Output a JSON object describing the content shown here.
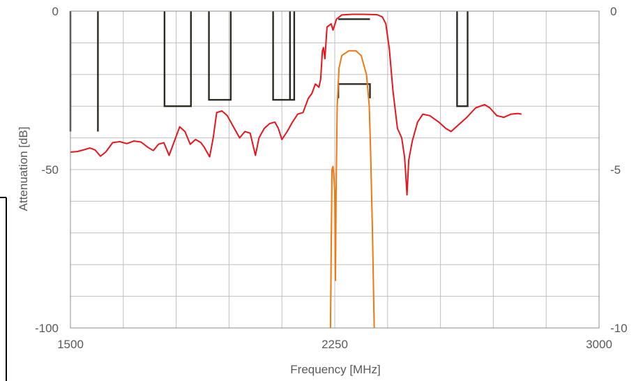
{
  "chart_data": {
    "type": "line",
    "title": "",
    "xlabel": "Frequency [MHz]",
    "ylabel": "Attenuation [dB]",
    "xlim": [
      1500,
      3000
    ],
    "ylim": [
      -100,
      0
    ],
    "y2lim": [
      -10,
      0
    ],
    "x_ticks": [
      "1500",
      "2250",
      "3000"
    ],
    "y_ticks": [
      "0",
      "-50",
      "-100"
    ],
    "y2_ticks": [
      "0",
      "-5",
      "-10"
    ],
    "grid": true,
    "colors": {
      "wide": "#e8141c",
      "zoom": "#f4770d",
      "mask": "#2a2a22",
      "grid": "#bfbfbf",
      "axis": "#7f7f7f"
    },
    "series": [
      {
        "axis": "left",
        "color": "#e8141c",
        "points": [
          [
            1500,
            -44.5
          ],
          [
            1520,
            -44.3
          ],
          [
            1540,
            -43.7
          ],
          [
            1555,
            -43.2
          ],
          [
            1570,
            -43.8
          ],
          [
            1585,
            -45.8
          ],
          [
            1600,
            -44.5
          ],
          [
            1620,
            -41.5
          ],
          [
            1640,
            -41.2
          ],
          [
            1660,
            -41.8
          ],
          [
            1680,
            -41.0
          ],
          [
            1700,
            -41.3
          ],
          [
            1720,
            -43.0
          ],
          [
            1735,
            -44.0
          ],
          [
            1750,
            -42.0
          ],
          [
            1765,
            -41.5
          ],
          [
            1780,
            -45.5
          ],
          [
            1795,
            -41.0
          ],
          [
            1810,
            -36.5
          ],
          [
            1825,
            -38.0
          ],
          [
            1840,
            -42.0
          ],
          [
            1855,
            -40.5
          ],
          [
            1870,
            -41.5
          ],
          [
            1880,
            -43.0
          ],
          [
            1895,
            -46.0
          ],
          [
            1905,
            -40.0
          ],
          [
            1915,
            -32.0
          ],
          [
            1930,
            -31.5
          ],
          [
            1945,
            -33.0
          ],
          [
            1965,
            -37.0
          ],
          [
            1980,
            -40.0
          ],
          [
            1995,
            -38.0
          ],
          [
            2010,
            -38.5
          ],
          [
            2025,
            -45.5
          ],
          [
            2035,
            -40.0
          ],
          [
            2050,
            -37.0
          ],
          [
            2065,
            -35.5
          ],
          [
            2080,
            -35.0
          ],
          [
            2090,
            -37.0
          ],
          [
            2100,
            -40.5
          ],
          [
            2115,
            -38.0
          ],
          [
            2130,
            -35.0
          ],
          [
            2145,
            -32.5
          ],
          [
            2160,
            -32.0
          ],
          [
            2175,
            -27.5
          ],
          [
            2185,
            -26.0
          ],
          [
            2195,
            -23.0
          ],
          [
            2205,
            -24.0
          ],
          [
            2210,
            -21.5
          ],
          [
            2215,
            -12.5
          ],
          [
            2218,
            -11.5
          ],
          [
            2222,
            -15.0
          ],
          [
            2228,
            -5.0
          ],
          [
            2240,
            -4.0
          ],
          [
            2245,
            -6.0
          ],
          [
            2255,
            -2.5
          ],
          [
            2270,
            -1.2
          ],
          [
            2300,
            -1.0
          ],
          [
            2330,
            -1.0
          ],
          [
            2370,
            -1.1
          ],
          [
            2385,
            -1.8
          ],
          [
            2395,
            -4.0
          ],
          [
            2405,
            -12.0
          ],
          [
            2415,
            -25.0
          ],
          [
            2428,
            -37.0
          ],
          [
            2440,
            -40.0
          ],
          [
            2448,
            -46.0
          ],
          [
            2452,
            -52.5
          ],
          [
            2455,
            -58.0
          ],
          [
            2460,
            -47.0
          ],
          [
            2470,
            -41.0
          ],
          [
            2485,
            -35.0
          ],
          [
            2500,
            -32.5
          ],
          [
            2520,
            -33.0
          ],
          [
            2545,
            -35.0
          ],
          [
            2565,
            -37.0
          ],
          [
            2580,
            -38.0
          ],
          [
            2600,
            -36.0
          ],
          [
            2625,
            -33.5
          ],
          [
            2650,
            -30.5
          ],
          [
            2675,
            -29.5
          ],
          [
            2690,
            -30.5
          ],
          [
            2710,
            -33.0
          ],
          [
            2730,
            -33.5
          ],
          [
            2750,
            -32.5
          ],
          [
            2770,
            -32.3
          ],
          [
            2780,
            -32.5
          ]
        ]
      },
      {
        "axis": "right",
        "color": "#f4770d",
        "points": [
          [
            2238,
            -10.0
          ],
          [
            2242,
            -5.0
          ],
          [
            2245,
            -4.9
          ],
          [
            2248,
            -5.3
          ],
          [
            2250,
            -5.7
          ],
          [
            2252,
            -8.5
          ],
          [
            2254,
            -5.6
          ],
          [
            2257,
            -3.0
          ],
          [
            2262,
            -1.8
          ],
          [
            2270,
            -1.4
          ],
          [
            2290,
            -1.25
          ],
          [
            2310,
            -1.25
          ],
          [
            2325,
            -1.4
          ],
          [
            2340,
            -2.0
          ],
          [
            2348,
            -3.0
          ],
          [
            2352,
            -4.5
          ],
          [
            2357,
            -7.0
          ],
          [
            2362,
            -10.0
          ]
        ]
      }
    ],
    "mask_segments": [
      [
        [
          1500,
          0
        ],
        [
          1500,
          -38
        ]
      ],
      [
        [
          1578,
          0
        ],
        [
          1578,
          -38
        ]
      ],
      [
        [
          1767,
          0
        ],
        [
          1767,
          -30
        ],
        [
          1842,
          -30
        ],
        [
          1842,
          0
        ]
      ],
      [
        [
          1893,
          0
        ],
        [
          1893,
          -28
        ],
        [
          1955,
          -28
        ],
        [
          1955,
          0
        ]
      ],
      [
        [
          2075,
          0
        ],
        [
          2075,
          -28
        ],
        [
          2135,
          -28
        ],
        [
          2135,
          0
        ]
      ],
      [
        [
          2123,
          0
        ],
        [
          2123,
          -28
        ]
      ],
      [
        [
          2260,
          -2.5
        ],
        [
          2350,
          -2.5
        ]
      ],
      [
        [
          2260,
          -27.5
        ],
        [
          2260,
          -23
        ],
        [
          2350,
          -23
        ],
        [
          2350,
          -27.5
        ]
      ],
      [
        [
          2597,
          0
        ],
        [
          2597,
          -30
        ],
        [
          2627,
          -30
        ],
        [
          2627,
          0
        ]
      ]
    ]
  }
}
